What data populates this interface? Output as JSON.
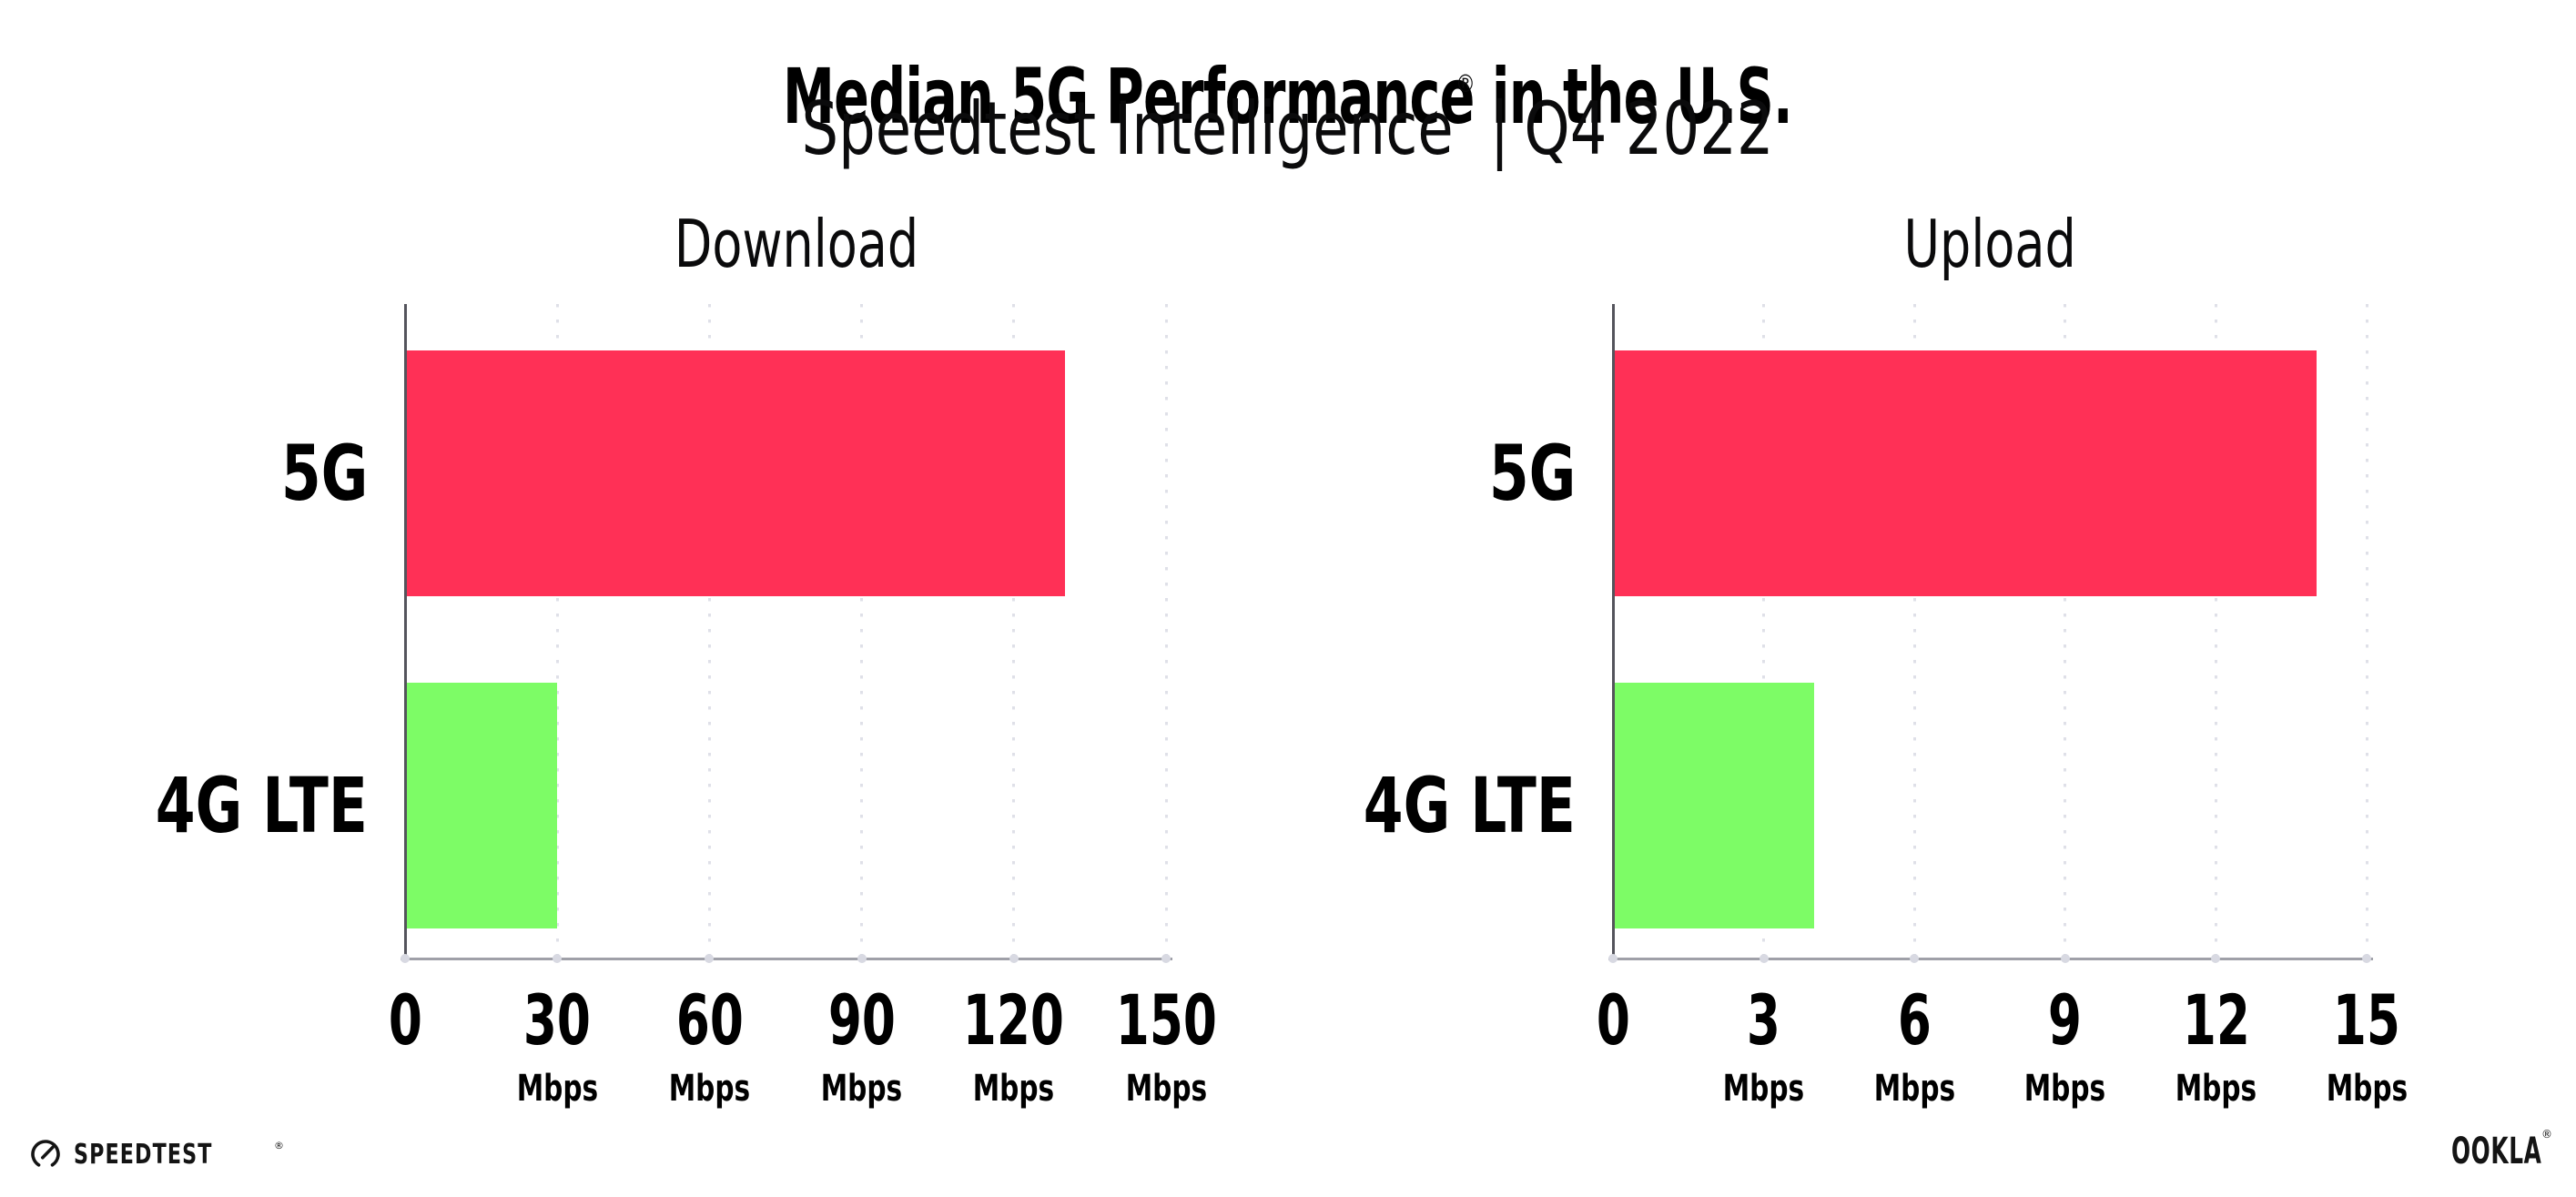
{
  "header": {
    "title": "Median 5G Performance in the U.S.",
    "subtitle": {
      "brand": "Speedtest Intelligence",
      "reg": "®",
      "separator": "|",
      "period": "Q4 2022"
    }
  },
  "chart_data": [
    {
      "type": "bar",
      "orientation": "horizontal",
      "title": "Download",
      "unit": "Mbps",
      "categories": [
        "5G",
        "4G LTE"
      ],
      "values": [
        130,
        30
      ],
      "xlim": [
        0,
        150
      ],
      "xticks": [
        0,
        30,
        60,
        90,
        120,
        150
      ],
      "series_colors": {
        "5G": "#ff3056",
        "4G LTE": "#7dfc66"
      },
      "grid": "dotted-vertical",
      "legend": "none"
    },
    {
      "type": "bar",
      "orientation": "horizontal",
      "title": "Upload",
      "unit": "Mbps",
      "categories": [
        "5G",
        "4G LTE"
      ],
      "values": [
        14,
        4
      ],
      "xlim": [
        0,
        15
      ],
      "xticks": [
        0,
        3,
        6,
        9,
        12,
        15
      ],
      "series_colors": {
        "5G": "#ff3056",
        "4G LTE": "#7dfc66"
      },
      "grid": "dotted-vertical",
      "legend": "none"
    }
  ],
  "footer": {
    "speedtest_wordmark": "SPEEDTEST",
    "speedtest_reg": "®",
    "ookla_wordmark": "OOKLA",
    "ookla_reg": "®"
  },
  "colors": {
    "bar_5g": "#ff3056",
    "bar_4g_lte": "#7dfc66",
    "gridline": "#dfe0e8",
    "x_axis": "#9fa0a8",
    "y_axis": "#54545c",
    "tick_dot": "#d8d9e2"
  }
}
